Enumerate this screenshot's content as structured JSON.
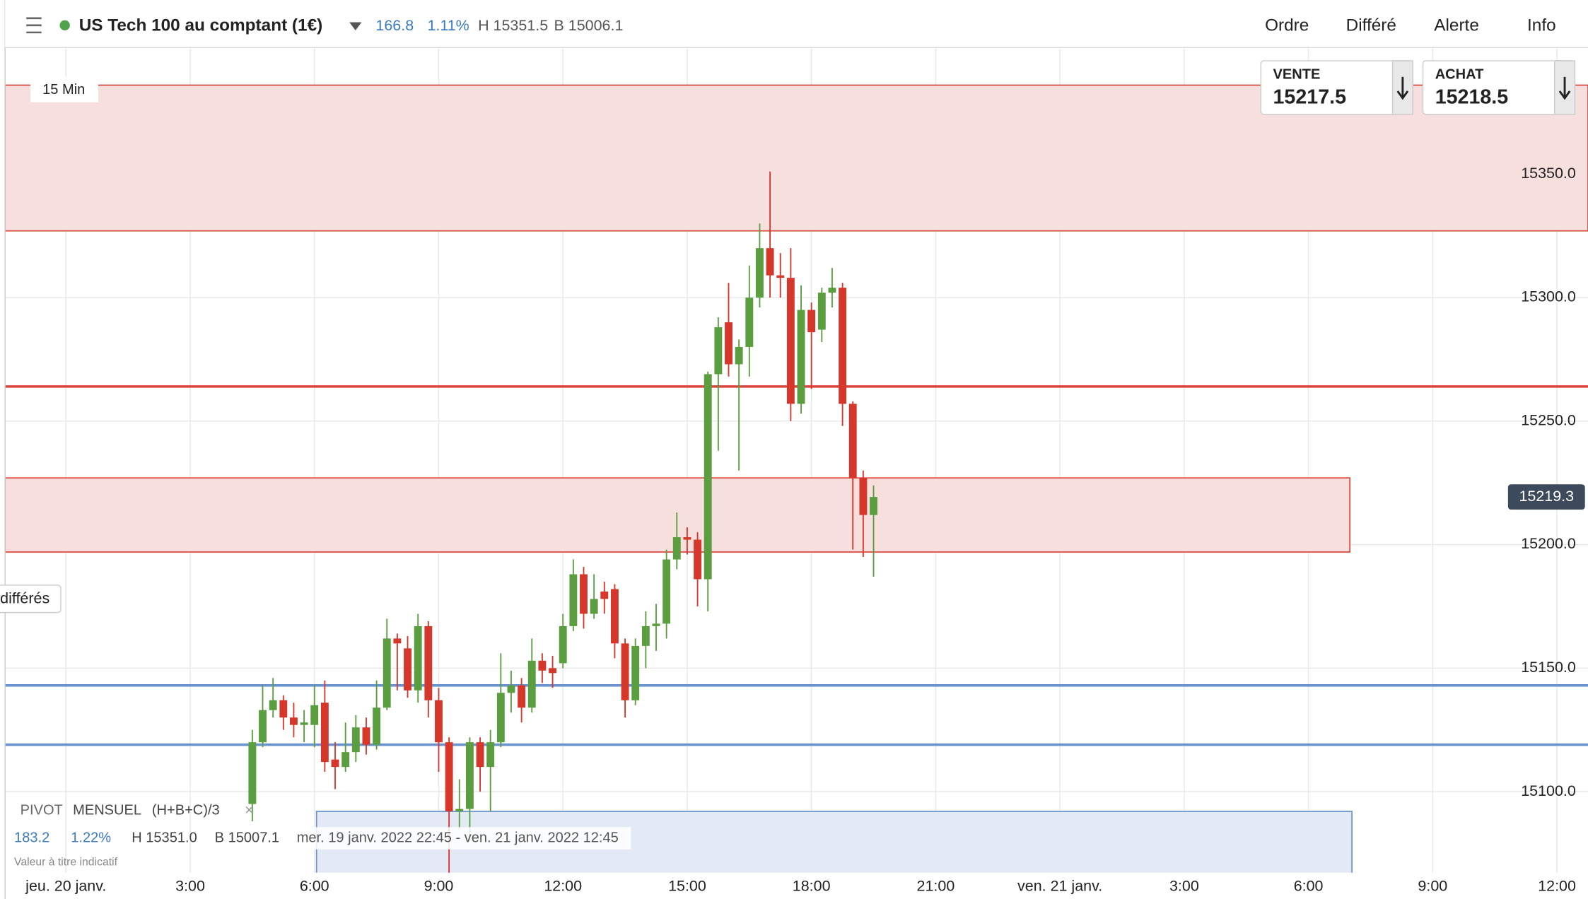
{
  "header": {
    "instrument": "US Tech 100 au comptant (1€)",
    "change": "166.8",
    "change_pct": "1.11%",
    "high": "H 15351.5",
    "low": "B 15006.1",
    "menu": [
      "Ordre",
      "Différé",
      "Alerte",
      "Info"
    ]
  },
  "quotes": {
    "sell": {
      "label": "VENTE",
      "price": "15217.5"
    },
    "buy": {
      "label": "ACHAT",
      "price": "15218.5"
    }
  },
  "timeframe": "15 Min",
  "side_tab": "différés",
  "pivot": {
    "name": "PIVOT",
    "period": "MENSUEL",
    "formula": "(H+B+C)/3",
    "change": "183.2",
    "change_pct": "1.22%",
    "high": "H 15351.0",
    "low": "B 15007.1",
    "range": "mer. 19 janv. 2022 22:45 - ven. 21 janv. 2022 12:45",
    "note": "Valeur à titre indicatif"
  },
  "chart_data": {
    "type": "candlestick",
    "up_color": "#5b9e3f",
    "down_color": "#d6372b",
    "grid": true,
    "x": [
      4.5,
      4.75,
      5,
      5.25,
      5.5,
      5.75,
      6,
      6.25,
      6.5,
      6.75,
      7,
      7.25,
      7.5,
      7.75,
      8,
      8.25,
      8.5,
      8.75,
      9,
      9.25,
      9.5,
      9.75,
      10,
      10.25,
      10.5,
      10.75,
      11,
      11.25,
      11.5,
      11.75,
      12,
      12.25,
      12.5,
      12.75,
      13,
      13.25,
      13.5,
      13.75,
      14,
      14.25,
      14.5,
      14.75,
      15,
      15.25,
      15.5,
      15.75,
      16,
      16.25,
      16.5,
      16.75,
      17,
      17.25,
      17.5,
      17.75,
      18,
      18.25,
      18.5,
      18.75,
      19,
      19.25,
      19.5
    ],
    "open": [
      15095,
      15120,
      15133,
      15137,
      15130,
      15127,
      15127,
      15136,
      15113,
      15110,
      15116,
      15126,
      15119,
      15134,
      15162,
      15158,
      15141,
      15167,
      15137,
      15120,
      15092,
      15093,
      15120,
      15110,
      15120,
      15140,
      15143,
      15134,
      15153,
      15150,
      15152,
      15167,
      15188,
      15172,
      15181,
      15182,
      15160,
      15137,
      15159,
      15167,
      15168,
      15194,
      15203,
      15202,
      15186,
      15269,
      15290,
      15273,
      15280,
      15300,
      15320,
      15309,
      15308,
      15257,
      15295,
      15287,
      15302,
      15304,
      15257,
      15227,
      15212
    ],
    "high": [
      15125,
      15143,
      15146,
      15139,
      15136,
      15133,
      15143,
      15145,
      15120,
      15128,
      15131,
      15130,
      15145,
      15170,
      15164,
      15163,
      15172,
      15169,
      15142,
      15122,
      15105,
      15122,
      15122,
      15125,
      15156,
      15149,
      15146,
      15162,
      15156,
      15155,
      15172,
      15194,
      15191,
      15188,
      15185,
      15184,
      15162,
      15162,
      15173,
      15176,
      15198,
      15213,
      15207,
      15205,
      15270,
      15292,
      15306,
      15283,
      15313,
      15330,
      15351,
      15318,
      15320,
      15305,
      15298,
      15304,
      15312,
      15306,
      15258,
      15230,
      15224
    ],
    "low": [
      15088,
      15118,
      15130,
      15125,
      15122,
      15120,
      15118,
      15108,
      15101,
      15108,
      15112,
      15115,
      15117,
      15133,
      15141,
      15138,
      15136,
      15130,
      15108,
      15060,
      15085,
      15080,
      15100,
      15092,
      15118,
      15132,
      15128,
      15132,
      15144,
      15142,
      15150,
      15165,
      15166,
      15170,
      15172,
      15154,
      15130,
      15135,
      15150,
      15157,
      15162,
      15190,
      15196,
      15175,
      15173,
      15238,
      15268,
      15230,
      15268,
      15296,
      15300,
      15300,
      15250,
      15253,
      15263,
      15282,
      15296,
      15248,
      15198,
      15195,
      15187
    ],
    "close": [
      15120,
      15133,
      15137,
      15130,
      15127,
      15128,
      15135,
      15112,
      15110,
      15116,
      15126,
      15119,
      15134,
      15162,
      15160,
      15141,
      15167,
      15137,
      15120,
      15092,
      15093,
      15120,
      15110,
      15120,
      15140,
      15143,
      15134,
      15153,
      15149,
      15148,
      15167,
      15188,
      15172,
      15178,
      15178,
      15160,
      15137,
      15159,
      15167,
      15168,
      15194,
      15203,
      15202,
      15186,
      15269,
      15288,
      15273,
      15280,
      15300,
      15320,
      15309,
      15308,
      15257,
      15295,
      15286,
      15302,
      15304,
      15257,
      15227,
      15212,
      15219.3
    ],
    "xlim": [
      -1.47,
      36.75
    ],
    "xticks": [
      {
        "value": 0,
        "label": "jeu. 20 janv."
      },
      {
        "value": 3,
        "label": "3:00"
      },
      {
        "value": 6,
        "label": "6:00"
      },
      {
        "value": 9,
        "label": "9:00"
      },
      {
        "value": 12,
        "label": "12:00"
      },
      {
        "value": 15,
        "label": "15:00"
      },
      {
        "value": 18,
        "label": "18:00"
      },
      {
        "value": 21,
        "label": "21:00"
      },
      {
        "value": 24,
        "label": "ven. 21 janv."
      },
      {
        "value": 27,
        "label": "3:00"
      },
      {
        "value": 30,
        "label": "6:00"
      },
      {
        "value": 33,
        "label": "9:00"
      },
      {
        "value": 36,
        "label": "12:00"
      }
    ],
    "ylim": [
      15067.2,
      15401.2
    ],
    "yticks": [
      {
        "value": 15100,
        "label": "15100.0"
      },
      {
        "value": 15150,
        "label": "15150.0"
      },
      {
        "value": 15200,
        "label": "15200.0"
      },
      {
        "value": 15250,
        "label": "15250.0"
      },
      {
        "value": 15300,
        "label": "15300.0"
      },
      {
        "value": 15350,
        "label": "15350.0"
      }
    ],
    "last_price": 15219.3,
    "hlines": [
      {
        "value": 15264,
        "color": "#d9463b"
      },
      {
        "value": 15143,
        "color": "#6a93cf"
      },
      {
        "value": 15119,
        "color": "#6a93cf"
      }
    ],
    "zones": [
      {
        "y": [
          15327,
          15386
        ],
        "color": "#f7dfdd",
        "border": "#d9463b"
      },
      {
        "y": [
          15197,
          15227
        ],
        "x": [
          -1.47,
          31.0
        ],
        "color": "#f7dfdd",
        "border": "#d9463b"
      },
      {
        "y": [
          15062,
          15092
        ],
        "x": [
          6.05,
          31.05
        ],
        "color": "#e3eaf6",
        "border": "#6a93cf"
      }
    ]
  }
}
